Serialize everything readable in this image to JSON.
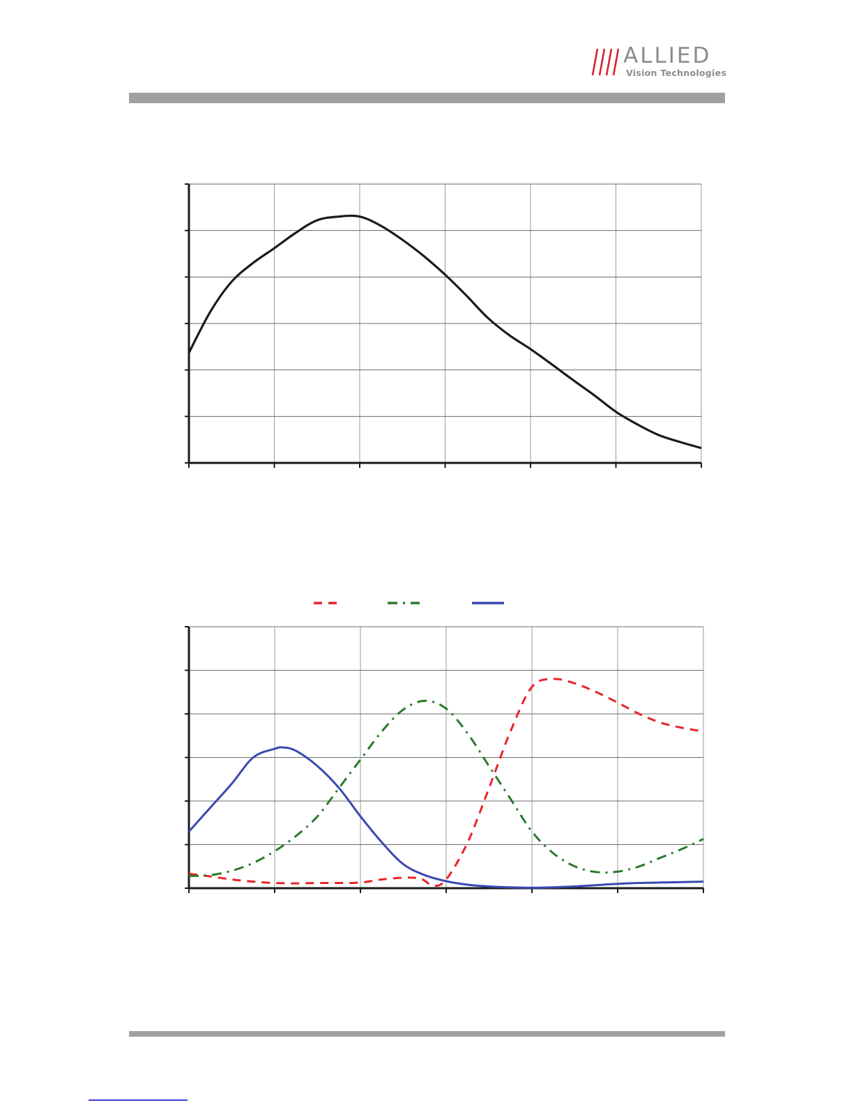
{
  "header": {
    "brand_name": "ALLIED",
    "brand_tagline": "Vision Technologies",
    "brand_color": "#d5242b",
    "rule_color": "#a0a0a0"
  },
  "chart_data": [
    {
      "type": "line",
      "xlim": [
        0,
        6
      ],
      "ylim": [
        0,
        6
      ],
      "grid": true,
      "series": [
        {
          "color": "#1a1a1a",
          "style": "solid",
          "x": [
            0,
            0.25,
            0.5,
            0.75,
            1,
            1.25,
            1.5,
            1.75,
            2,
            2.25,
            2.5,
            2.75,
            3,
            3.25,
            3.5,
            3.75,
            4,
            4.25,
            4.5,
            4.75,
            5,
            5.25,
            5.5,
            5.75,
            6
          ],
          "y": [
            2.37,
            3.25,
            3.9,
            4.3,
            4.62,
            4.95,
            5.22,
            5.3,
            5.3,
            5.1,
            4.8,
            4.45,
            4.05,
            3.6,
            3.12,
            2.75,
            2.45,
            2.12,
            1.78,
            1.45,
            1.1,
            0.83,
            0.6,
            0.45,
            0.32
          ]
        }
      ]
    },
    {
      "type": "line",
      "xlim": [
        0,
        6
      ],
      "ylim": [
        0,
        6
      ],
      "grid": true,
      "legend": "top-center",
      "series": [
        {
          "color": "#e8232a",
          "style": "dashed",
          "x": [
            0,
            0.25,
            0.5,
            0.75,
            1,
            1.25,
            1.5,
            1.75,
            2,
            2.25,
            2.5,
            2.7,
            2.85,
            3,
            3.25,
            3.5,
            3.75,
            4,
            4.25,
            4.5,
            4.75,
            5,
            5.25,
            5.5,
            5.75,
            6
          ],
          "y": [
            0.33,
            0.27,
            0.2,
            0.15,
            0.12,
            0.11,
            0.12,
            0.12,
            0.13,
            0.2,
            0.24,
            0.22,
            0.06,
            0.2,
            1.05,
            2.3,
            3.6,
            4.62,
            4.8,
            4.7,
            4.5,
            4.26,
            4.0,
            3.8,
            3.68,
            3.6
          ]
        },
        {
          "color": "#2b7a2b",
          "style": "dashdot",
          "x": [
            0,
            0.25,
            0.5,
            0.75,
            1,
            1.25,
            1.5,
            1.75,
            2,
            2.25,
            2.5,
            2.75,
            3,
            3.25,
            3.5,
            3.75,
            4,
            4.25,
            4.5,
            4.75,
            5,
            5.25,
            5.5,
            5.75,
            6
          ],
          "y": [
            0.28,
            0.3,
            0.4,
            0.58,
            0.85,
            1.2,
            1.65,
            2.3,
            2.95,
            3.6,
            4.1,
            4.3,
            4.12,
            3.55,
            2.8,
            2.05,
            1.3,
            0.8,
            0.5,
            0.37,
            0.38,
            0.5,
            0.7,
            0.9,
            1.13
          ]
        },
        {
          "color": "#3a48b0",
          "style": "solid",
          "x": [
            0,
            0.25,
            0.5,
            0.75,
            1,
            1.1,
            1.25,
            1.5,
            1.75,
            2,
            2.25,
            2.5,
            2.75,
            3,
            3.25,
            3.5,
            3.75,
            4,
            4.25,
            4.5,
            4.75,
            5,
            5.25,
            5.5,
            5.75,
            6
          ],
          "y": [
            1.3,
            1.85,
            2.4,
            3.0,
            3.2,
            3.23,
            3.15,
            2.8,
            2.3,
            1.65,
            1.05,
            0.55,
            0.3,
            0.16,
            0.08,
            0.04,
            0.02,
            0.01,
            0.02,
            0.04,
            0.07,
            0.1,
            0.12,
            0.13,
            0.14,
            0.15
          ]
        }
      ]
    }
  ]
}
